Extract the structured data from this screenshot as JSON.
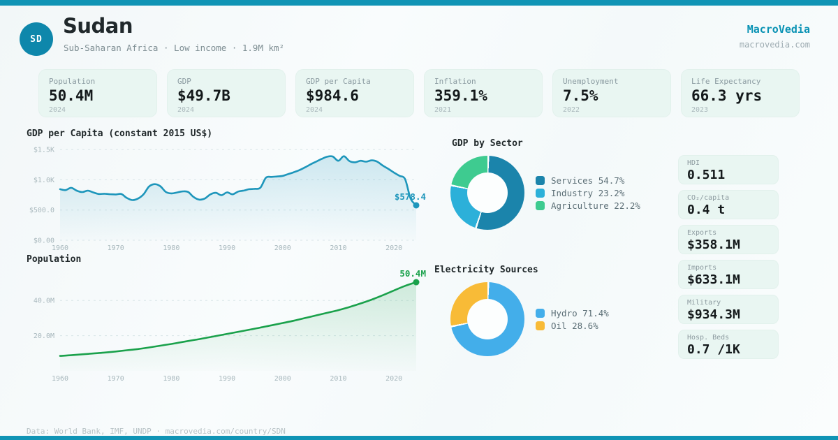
{
  "colors": {
    "accent": "#1094b5",
    "badge": "#0e87ab",
    "card_bg": "#e9f6f2"
  },
  "brand": {
    "name": "MacroVedia",
    "site": "macrovedia.com"
  },
  "header": {
    "badge": "SD",
    "country": "Sudan",
    "subtitle": "Sub-Saharan Africa · Low income · 1.9M km²"
  },
  "stats": [
    {
      "label": "Population",
      "value": "50.4M",
      "year": "2024"
    },
    {
      "label": "GDP",
      "value": "$49.7B",
      "year": "2024"
    },
    {
      "label": "GDP per Capita",
      "value": "$984.6",
      "year": "2024"
    },
    {
      "label": "Inflation",
      "value": "359.1%",
      "year": "2021"
    },
    {
      "label": "Unemployment",
      "value": "7.5%",
      "year": "2022"
    },
    {
      "label": "Life Expectancy",
      "value": "66.3 yrs",
      "year": "2023"
    }
  ],
  "side_stats": [
    {
      "label": "HDI",
      "value": "0.511"
    },
    {
      "label": "CO₂/capita",
      "value": "0.4 t"
    },
    {
      "label": "Exports",
      "value": "$358.1M"
    },
    {
      "label": "Imports",
      "value": "$633.1M"
    },
    {
      "label": "Military",
      "value": "$934.3M"
    },
    {
      "label": "Hosp. Beds",
      "value": "0.7 /1K"
    }
  ],
  "footer": {
    "text": "Data: World Bank, IMF, UNDP · macrovedia.com/country/SDN"
  },
  "chart_data": [
    {
      "id": "gdp_per_capita",
      "type": "area",
      "title": "GDP per Capita (constant 2015 US$)",
      "xlabel": "",
      "ylabel": "",
      "color": "#1e96bb",
      "fill": {
        "from": "rgba(30,150,187,0.20)",
        "to": "rgba(30,150,187,0.01)"
      },
      "xlim": [
        1960,
        2024
      ],
      "ylim": [
        0,
        1560
      ],
      "grid": true,
      "yticks": [
        {
          "value": 0,
          "label": "$0.00"
        },
        {
          "value": 500,
          "label": "$500.0"
        },
        {
          "value": 1000,
          "label": "$1.0K"
        },
        {
          "value": 1500,
          "label": "$1.5K"
        }
      ],
      "xticks": [
        1960,
        1970,
        1980,
        1990,
        2000,
        2010,
        2020
      ],
      "annotation": {
        "text": "$578.4"
      },
      "x": [
        1960,
        1961,
        1962,
        1963,
        1964,
        1965,
        1966,
        1967,
        1968,
        1969,
        1970,
        1971,
        1972,
        1973,
        1974,
        1975,
        1976,
        1977,
        1978,
        1979,
        1980,
        1981,
        1982,
        1983,
        1984,
        1985,
        1986,
        1987,
        1988,
        1989,
        1990,
        1991,
        1992,
        1993,
        1994,
        1995,
        1996,
        1997,
        1998,
        1999,
        2000,
        2001,
        2002,
        2003,
        2004,
        2005,
        2006,
        2007,
        2008,
        2009,
        2010,
        2011,
        2012,
        2013,
        2014,
        2015,
        2016,
        2017,
        2018,
        2019,
        2020,
        2021,
        2022,
        2023,
        2024
      ],
      "values": [
        845,
        830,
        868,
        820,
        797,
        820,
        790,
        765,
        770,
        762,
        758,
        765,
        700,
        665,
        690,
        760,
        890,
        928,
        895,
        800,
        775,
        790,
        808,
        800,
        715,
        672,
        690,
        758,
        785,
        745,
        792,
        760,
        805,
        822,
        845,
        850,
        870,
        1035,
        1048,
        1055,
        1065,
        1095,
        1125,
        1160,
        1205,
        1255,
        1300,
        1345,
        1382,
        1385,
        1315,
        1390,
        1310,
        1290,
        1315,
        1300,
        1322,
        1300,
        1235,
        1180,
        1120,
        1065,
        1010,
        690,
        578.4
      ]
    },
    {
      "id": "population",
      "type": "area",
      "title": "Population",
      "xlabel": "",
      "ylabel": "",
      "color": "#1aa14b",
      "fill": {
        "from": "rgba(26,161,75,0.18)",
        "to": "rgba(26,161,75,0.01)"
      },
      "xlim": [
        1960,
        2024
      ],
      "ylim": [
        0,
        52
      ],
      "grid": true,
      "yticks": [
        {
          "value": 20,
          "label": "20.0M"
        },
        {
          "value": 40,
          "label": "40.0M"
        }
      ],
      "xticks": [
        1960,
        1970,
        1980,
        1990,
        2000,
        2010,
        2020
      ],
      "annotation": {
        "text": "50.4M"
      },
      "x": [
        1960,
        1962,
        1964,
        1966,
        1968,
        1970,
        1972,
        1974,
        1976,
        1978,
        1980,
        1982,
        1984,
        1986,
        1988,
        1990,
        1992,
        1994,
        1996,
        1998,
        2000,
        2002,
        2004,
        2006,
        2008,
        2010,
        2012,
        2014,
        2016,
        2018,
        2020,
        2022,
        2024
      ],
      "values": [
        8.5,
        8.9,
        9.4,
        9.9,
        10.4,
        11.0,
        11.7,
        12.4,
        13.3,
        14.3,
        15.3,
        16.4,
        17.5,
        18.6,
        19.8,
        21.0,
        22.2,
        23.4,
        24.6,
        25.9,
        27.2,
        28.5,
        30.0,
        31.5,
        33.0,
        34.5,
        36.3,
        38.3,
        40.5,
        43.0,
        45.7,
        48.3,
        50.4
      ]
    },
    {
      "id": "gdp_by_sector",
      "type": "pie",
      "title": "GDP by Sector",
      "legend_position": "right",
      "segments": [
        {
          "label": "Services",
          "value": 54.7,
          "color": "#1b84ab"
        },
        {
          "label": "Industry",
          "value": 23.2,
          "color": "#2cb0d9"
        },
        {
          "label": "Agriculture",
          "value": 22.2,
          "color": "#3ecb90"
        }
      ]
    },
    {
      "id": "electricity_sources",
      "type": "pie",
      "title": "Electricity Sources",
      "legend_position": "right",
      "segments": [
        {
          "label": "Hydro",
          "value": 71.4,
          "color": "#43aeea"
        },
        {
          "label": "Oil",
          "value": 28.6,
          "color": "#f8bb37"
        }
      ]
    }
  ]
}
